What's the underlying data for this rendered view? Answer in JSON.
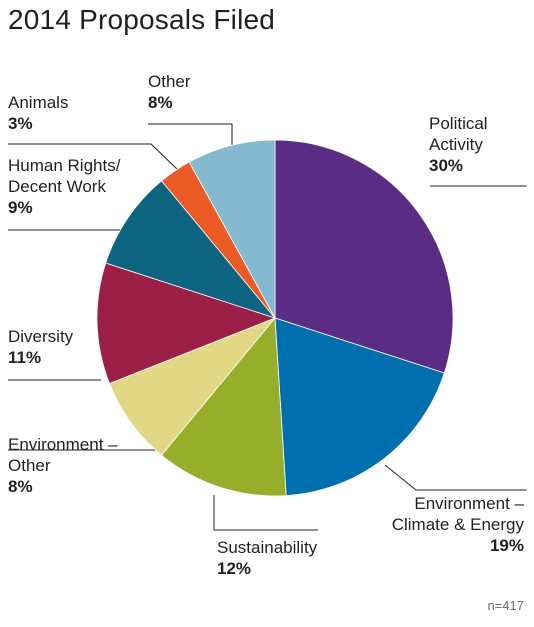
{
  "chart_data": {
    "type": "pie",
    "title": "2014 Proposals Filed",
    "note": "n=417",
    "slices": [
      {
        "label_lines": [
          "Political",
          "Activity"
        ],
        "value": 30,
        "value_label": "30%",
        "color": "#5b2c83"
      },
      {
        "label_lines": [
          "Environment –",
          "Climate & Energy"
        ],
        "value": 19,
        "value_label": "19%",
        "color": "#006fae"
      },
      {
        "label_lines": [
          "Sustainability"
        ],
        "value": 12,
        "value_label": "12%",
        "color": "#96ae2a"
      },
      {
        "label_lines": [
          "Environment –",
          "Other"
        ],
        "value": 8,
        "value_label": "8%",
        "color": "#e2d785"
      },
      {
        "label_lines": [
          "Diversity"
        ],
        "value": 11,
        "value_label": "11%",
        "color": "#9b1f47"
      },
      {
        "label_lines": [
          "Human Rights/",
          "Decent Work"
        ],
        "value": 9,
        "value_label": "9%",
        "color": "#0d6480"
      },
      {
        "label_lines": [
          "Animals"
        ],
        "value": 3,
        "value_label": "3%",
        "color": "#ea5b26"
      },
      {
        "label_lines": [
          "Other"
        ],
        "value": 8,
        "value_label": "8%",
        "color": "#84b9d0"
      }
    ]
  }
}
